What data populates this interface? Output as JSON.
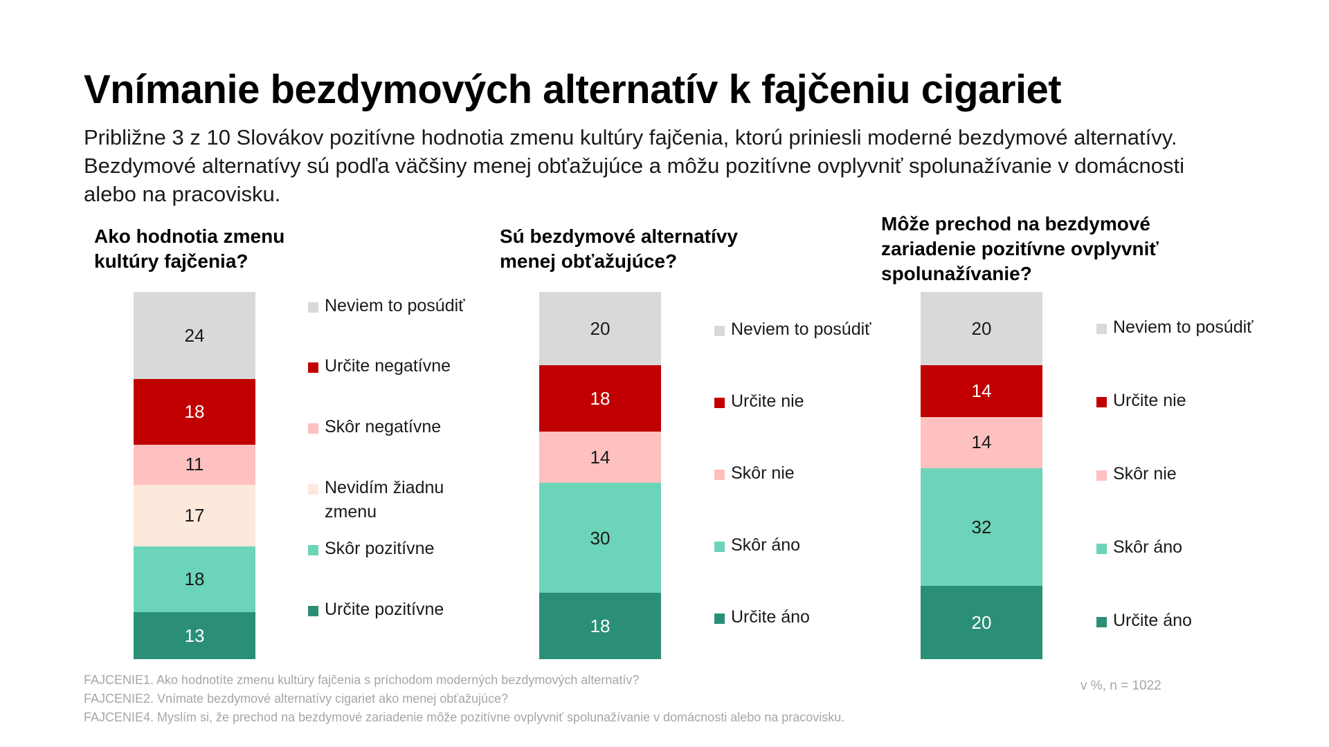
{
  "title": "Vnímanie bezdymových alternatív k fajčeniu cigariet",
  "subtitle": "Približne 3 z 10 Slovákov pozitívne hodnotia zmenu kultúry fajčenia, ktorú priniesli moderné bezdymové alternatívy. Bezdymové alternatívy sú podľa väčšiny menej obťažujúce a môžu pozitívne ovplyvniť spolunažívanie v domácnosti alebo na pracovisku.",
  "footnotes": [
    "FAJCENIE1. Ako hodnotíte zmenu kultúry fajčenia s príchodom moderných bezdymových alternatív?",
    "FAJCENIE2. Vnímate bezdymové alternatívy cigariet ako menej obťažujúce?",
    "FAJCENIE4. Myslím si, že prechod na bezdymové zariadenie môže pozitívne ovplyvniť spolunažívanie v domácnosti alebo na pracovisku."
  ],
  "base_note": "v %, n = 1022",
  "chart_data": [
    {
      "type": "bar",
      "stacked": true,
      "title": "Ako hodnotia zmenu kultúry fajčenia?",
      "unit": "%",
      "segments": [
        {
          "label": "Neviem to posúdiť",
          "value": 24,
          "color": "#d9d9d9",
          "text_color": "#1a1a1a"
        },
        {
          "label": "Určite negatívne",
          "value": 18,
          "color": "#c00000",
          "text_color": "#ffffff"
        },
        {
          "label": "Skôr negatívne",
          "value": 11,
          "color": "#ffc0c0",
          "text_color": "#1a1a1a"
        },
        {
          "label": "Nevidím žiadnu zmenu",
          "value": 17,
          "color": "#fce9dc",
          "text_color": "#1a1a1a"
        },
        {
          "label": "Skôr pozitívne",
          "value": 18,
          "color": "#6cd4b8",
          "text_color": "#1a1a1a"
        },
        {
          "label": "Určite pozitívne",
          "value": 13,
          "color": "#2a8f76",
          "text_color": "#ffffff"
        }
      ]
    },
    {
      "type": "bar",
      "stacked": true,
      "title": "Sú bezdymové alternatívy menej obťažujúce?",
      "unit": "%",
      "segments": [
        {
          "label": "Neviem to posúdiť",
          "value": 20,
          "color": "#d9d9d9",
          "text_color": "#1a1a1a"
        },
        {
          "label": "Určite nie",
          "value": 18,
          "color": "#c00000",
          "text_color": "#ffffff"
        },
        {
          "label": "Skôr nie",
          "value": 14,
          "color": "#ffc0c0",
          "text_color": "#1a1a1a"
        },
        {
          "label": "Skôr áno",
          "value": 30,
          "color": "#6cd4b8",
          "text_color": "#1a1a1a"
        },
        {
          "label": "Určite áno",
          "value": 18,
          "color": "#2a8f76",
          "text_color": "#ffffff"
        }
      ]
    },
    {
      "type": "bar",
      "stacked": true,
      "title": "Môže prechod na bezdymové zariadenie pozitívne ovplyvniť spolunažívanie?",
      "unit": "%",
      "segments": [
        {
          "label": "Neviem to posúdiť",
          "value": 20,
          "color": "#d9d9d9",
          "text_color": "#1a1a1a"
        },
        {
          "label": "Určite nie",
          "value": 14,
          "color": "#c00000",
          "text_color": "#ffffff"
        },
        {
          "label": "Skôr nie",
          "value": 14,
          "color": "#ffc0c0",
          "text_color": "#1a1a1a"
        },
        {
          "label": "Skôr áno",
          "value": 32,
          "color": "#6cd4b8",
          "text_color": "#1a1a1a"
        },
        {
          "label": "Určite áno",
          "value": 20,
          "color": "#2a8f76",
          "text_color": "#ffffff"
        }
      ]
    }
  ]
}
